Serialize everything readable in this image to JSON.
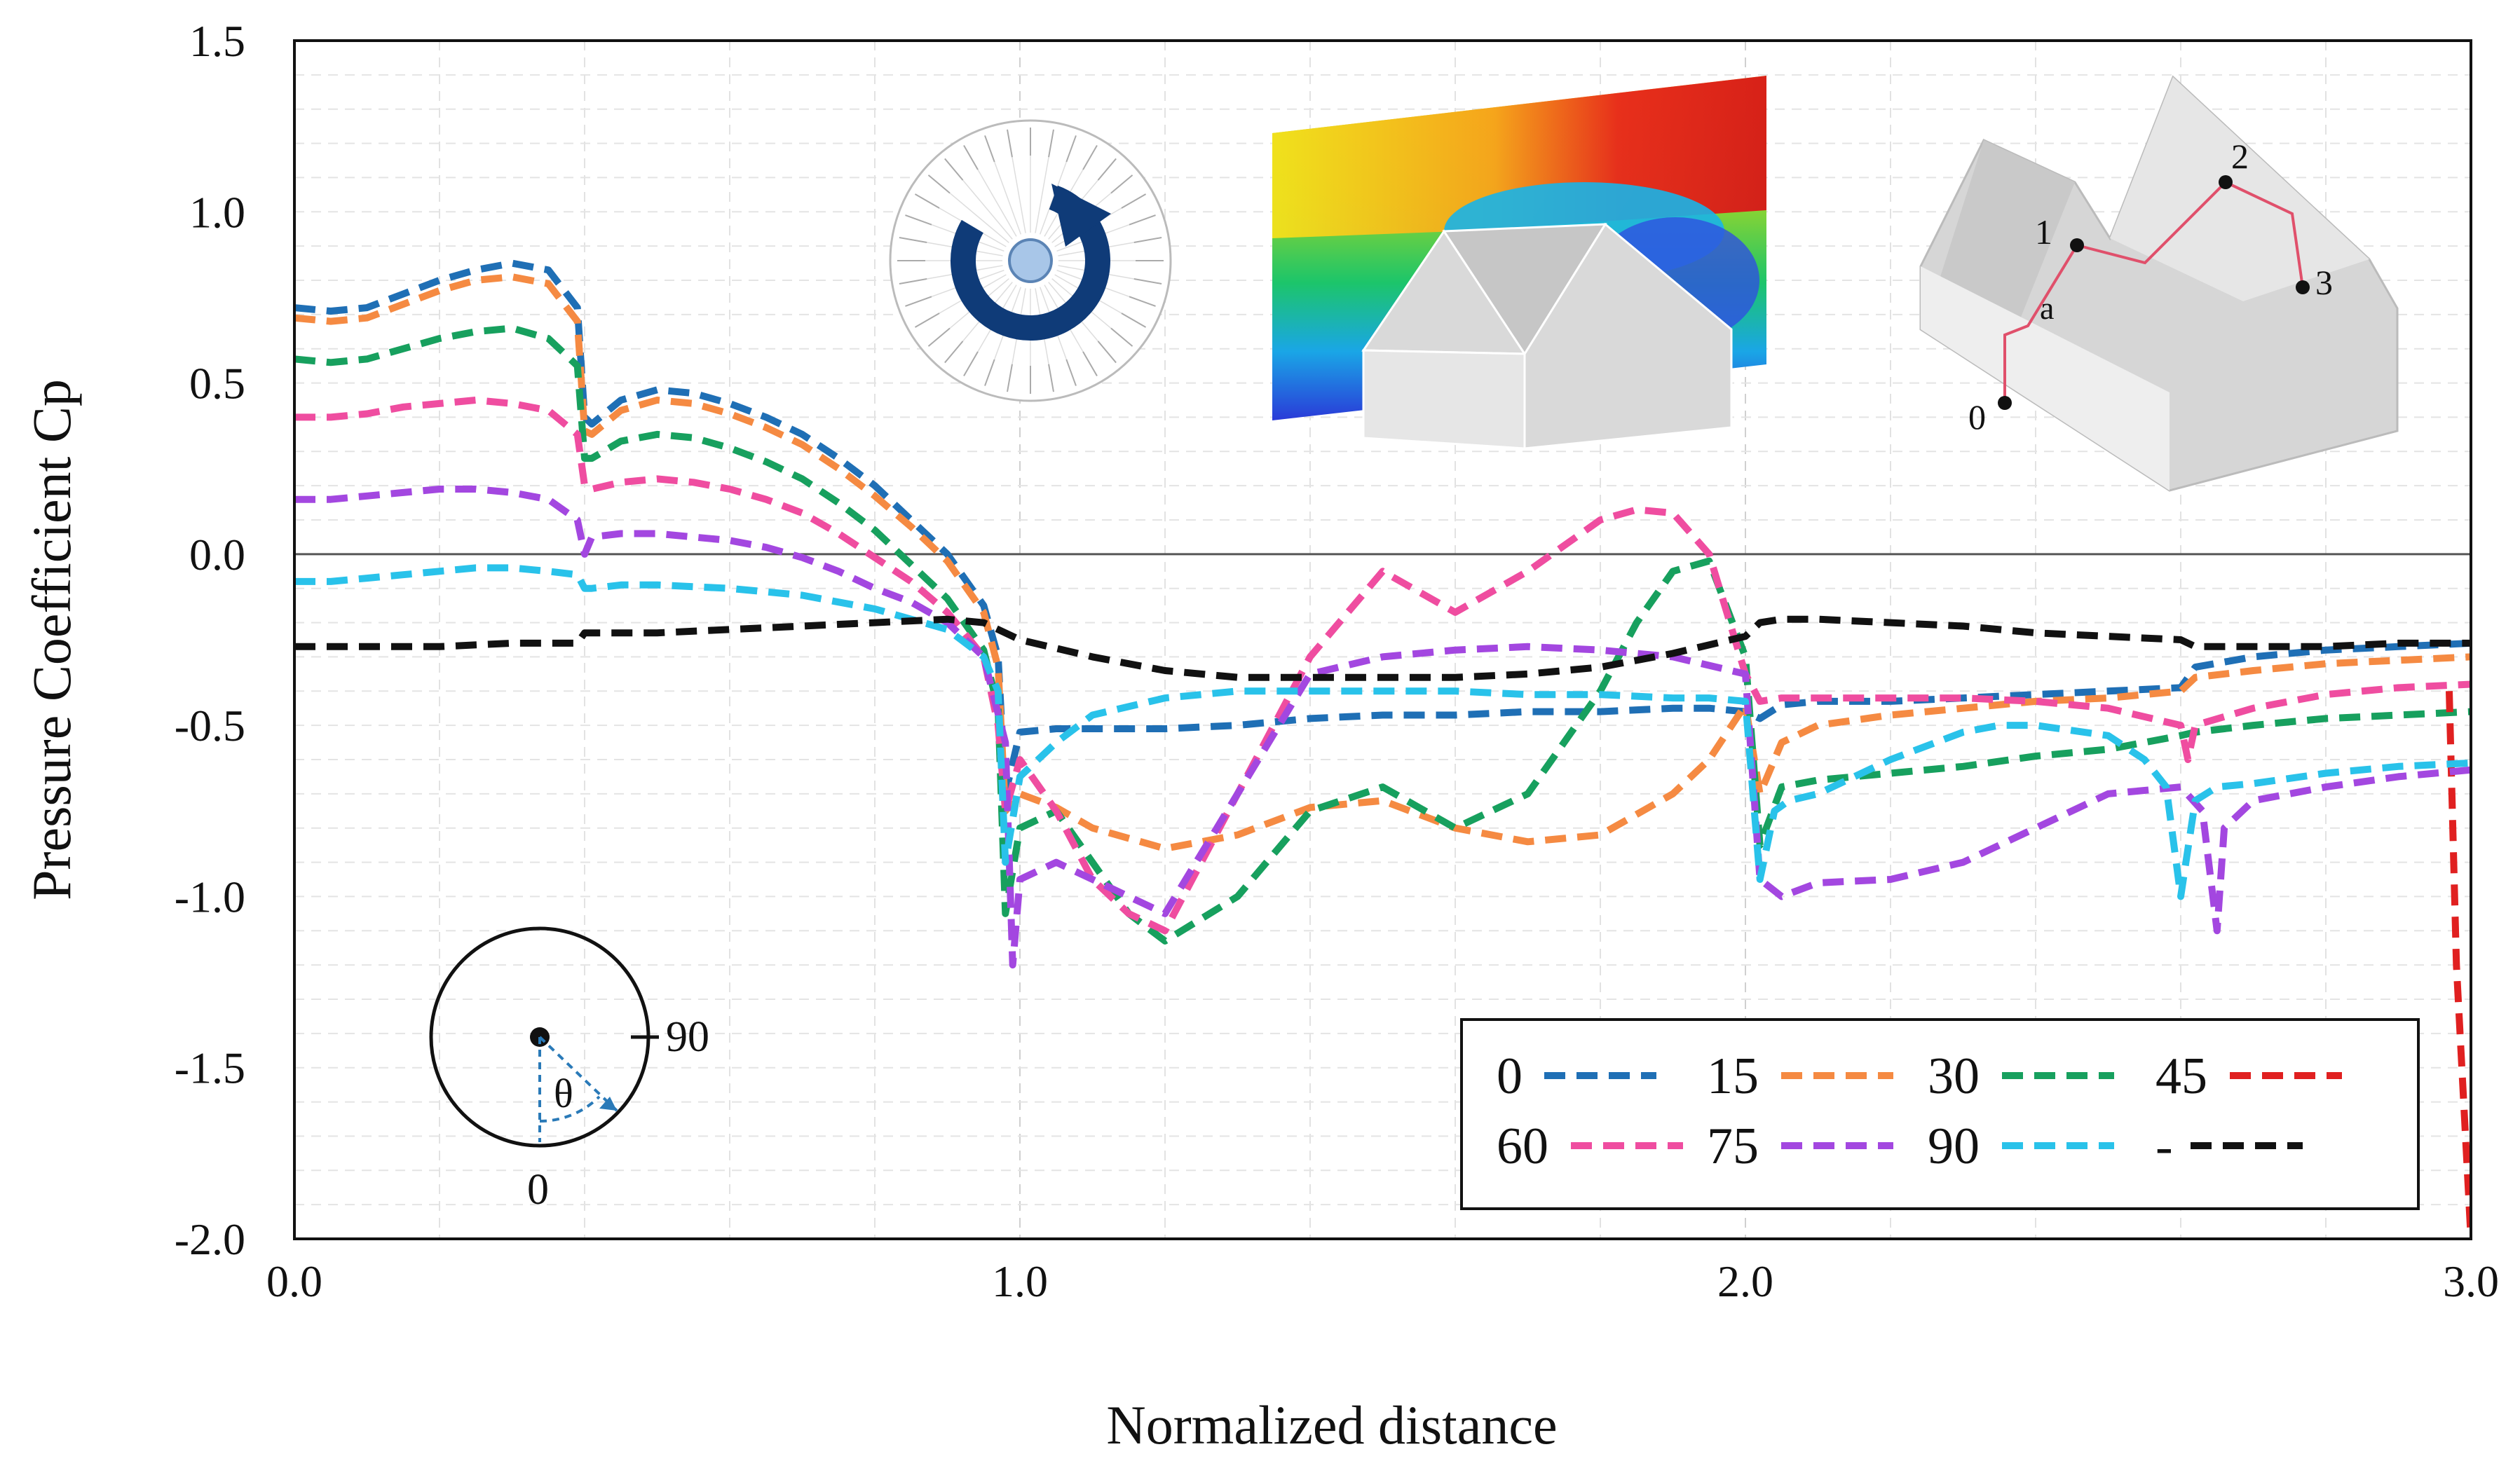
{
  "chart_data": {
    "type": "line",
    "xlabel": "Normalized distance",
    "ylabel": "Pressure Coefficient Cp",
    "xlim": [
      0.0,
      3.0
    ],
    "ylim": [
      -2.0,
      1.5
    ],
    "x_ticks": [
      "0.0",
      "1.0",
      "2.0",
      "3.0"
    ],
    "x_tick_values": [
      0,
      1,
      2,
      3
    ],
    "y_ticks": [
      "1.5",
      "1.0",
      "0.5",
      "0.0",
      "-0.5",
      "-1.0",
      "-1.5",
      "-2.0"
    ],
    "y_tick_values": [
      1.5,
      1.0,
      0.5,
      0.0,
      -0.5,
      -1.0,
      -1.5,
      -2.0
    ],
    "grid": true,
    "legend_position": "bottom-right",
    "series": [
      {
        "name": "0",
        "color": "#1f6fb5",
        "x": [
          0.0,
          0.05,
          0.1,
          0.15,
          0.2,
          0.25,
          0.3,
          0.35,
          0.39,
          0.4,
          0.41,
          0.45,
          0.5,
          0.55,
          0.6,
          0.65,
          0.7,
          0.75,
          0.8,
          0.85,
          0.9,
          0.95,
          0.97,
          0.98,
          1.0,
          1.05,
          1.1,
          1.2,
          1.3,
          1.4,
          1.5,
          1.6,
          1.7,
          1.8,
          1.9,
          1.95,
          2.0,
          2.02,
          2.05,
          2.1,
          2.2,
          2.3,
          2.4,
          2.5,
          2.6,
          2.62,
          2.7,
          2.8,
          2.9,
          3.0
        ],
        "y": [
          0.72,
          0.71,
          0.72,
          0.76,
          0.8,
          0.83,
          0.85,
          0.83,
          0.72,
          0.4,
          0.38,
          0.45,
          0.48,
          0.47,
          0.44,
          0.4,
          0.35,
          0.28,
          0.2,
          0.1,
          0.0,
          -0.15,
          -0.3,
          -0.7,
          -0.52,
          -0.51,
          -0.51,
          -0.51,
          -0.5,
          -0.48,
          -0.47,
          -0.47,
          -0.46,
          -0.46,
          -0.45,
          -0.45,
          -0.46,
          -0.48,
          -0.44,
          -0.43,
          -0.43,
          -0.42,
          -0.41,
          -0.4,
          -0.39,
          -0.33,
          -0.3,
          -0.28,
          -0.27,
          -0.26
        ]
      },
      {
        "name": "15",
        "color": "#f58a42",
        "x": [
          0.0,
          0.05,
          0.1,
          0.15,
          0.2,
          0.25,
          0.3,
          0.35,
          0.39,
          0.4,
          0.41,
          0.45,
          0.5,
          0.55,
          0.6,
          0.65,
          0.7,
          0.75,
          0.8,
          0.85,
          0.9,
          0.95,
          0.97,
          0.98,
          1.0,
          1.05,
          1.1,
          1.2,
          1.3,
          1.4,
          1.5,
          1.6,
          1.7,
          1.8,
          1.9,
          1.95,
          2.0,
          2.02,
          2.05,
          2.1,
          2.2,
          2.3,
          2.4,
          2.5,
          2.6,
          2.62,
          2.7,
          2.8,
          2.9,
          3.0
        ],
        "y": [
          0.69,
          0.68,
          0.69,
          0.73,
          0.77,
          0.8,
          0.81,
          0.79,
          0.68,
          0.36,
          0.35,
          0.42,
          0.45,
          0.44,
          0.41,
          0.37,
          0.32,
          0.25,
          0.17,
          0.08,
          -0.02,
          -0.17,
          -0.33,
          -0.75,
          -0.7,
          -0.74,
          -0.8,
          -0.86,
          -0.82,
          -0.74,
          -0.72,
          -0.8,
          -0.84,
          -0.82,
          -0.7,
          -0.6,
          -0.44,
          -0.7,
          -0.55,
          -0.5,
          -0.47,
          -0.45,
          -0.43,
          -0.42,
          -0.4,
          -0.36,
          -0.34,
          -0.32,
          -0.31,
          -0.3
        ]
      },
      {
        "name": "30",
        "color": "#17a05e",
        "x": [
          0.0,
          0.05,
          0.1,
          0.15,
          0.2,
          0.25,
          0.3,
          0.35,
          0.39,
          0.4,
          0.41,
          0.45,
          0.5,
          0.55,
          0.6,
          0.65,
          0.7,
          0.75,
          0.8,
          0.85,
          0.9,
          0.95,
          0.97,
          0.98,
          1.0,
          1.05,
          1.1,
          1.15,
          1.2,
          1.3,
          1.4,
          1.5,
          1.6,
          1.7,
          1.8,
          1.85,
          1.9,
          1.95,
          2.0,
          2.02,
          2.05,
          2.1,
          2.2,
          2.3,
          2.4,
          2.5,
          2.6,
          2.62,
          2.7,
          2.8,
          2.9,
          3.0
        ],
        "y": [
          0.57,
          0.56,
          0.57,
          0.6,
          0.63,
          0.65,
          0.66,
          0.63,
          0.55,
          0.28,
          0.28,
          0.33,
          0.35,
          0.34,
          0.31,
          0.27,
          0.22,
          0.15,
          0.07,
          -0.03,
          -0.13,
          -0.28,
          -0.45,
          -1.05,
          -0.8,
          -0.75,
          -0.9,
          -1.05,
          -1.13,
          -1.0,
          -0.75,
          -0.68,
          -0.8,
          -0.7,
          -0.4,
          -0.2,
          -0.05,
          -0.02,
          -0.3,
          -0.85,
          -0.68,
          -0.66,
          -0.64,
          -0.62,
          -0.59,
          -0.57,
          -0.53,
          -0.52,
          -0.5,
          -0.48,
          -0.47,
          -0.46
        ]
      },
      {
        "name": "45",
        "color": "#e02020",
        "x": [
          2.97,
          2.98,
          3.0
        ],
        "y": [
          -0.4,
          -1.2,
          -2.0
        ]
      },
      {
        "name": "60",
        "color": "#ef4da0",
        "x": [
          0.0,
          0.05,
          0.1,
          0.15,
          0.2,
          0.25,
          0.3,
          0.35,
          0.39,
          0.4,
          0.41,
          0.45,
          0.5,
          0.55,
          0.6,
          0.65,
          0.7,
          0.75,
          0.8,
          0.85,
          0.9,
          0.95,
          0.97,
          0.98,
          1.0,
          1.05,
          1.1,
          1.15,
          1.2,
          1.3,
          1.4,
          1.5,
          1.6,
          1.7,
          1.8,
          1.85,
          1.9,
          1.95,
          2.0,
          2.02,
          2.05,
          2.1,
          2.2,
          2.3,
          2.4,
          2.5,
          2.6,
          2.61,
          2.62,
          2.7,
          2.8,
          2.9,
          3.0
        ],
        "y": [
          0.4,
          0.4,
          0.41,
          0.43,
          0.44,
          0.45,
          0.44,
          0.42,
          0.35,
          0.2,
          0.19,
          0.21,
          0.22,
          0.21,
          0.19,
          0.16,
          0.12,
          0.06,
          -0.01,
          -0.08,
          -0.17,
          -0.3,
          -0.5,
          -0.75,
          -0.6,
          -0.75,
          -0.95,
          -1.05,
          -1.1,
          -0.7,
          -0.3,
          -0.05,
          -0.17,
          -0.05,
          0.1,
          0.13,
          0.12,
          0.0,
          -0.35,
          -0.43,
          -0.42,
          -0.42,
          -0.42,
          -0.42,
          -0.43,
          -0.45,
          -0.5,
          -0.6,
          -0.5,
          -0.45,
          -0.41,
          -0.39,
          -0.38
        ]
      },
      {
        "name": "75",
        "color": "#a347e0",
        "x": [
          0.0,
          0.05,
          0.1,
          0.15,
          0.2,
          0.25,
          0.3,
          0.35,
          0.39,
          0.4,
          0.41,
          0.45,
          0.5,
          0.55,
          0.6,
          0.65,
          0.7,
          0.75,
          0.8,
          0.85,
          0.9,
          0.95,
          0.98,
          0.99,
          1.0,
          1.05,
          1.1,
          1.2,
          1.3,
          1.4,
          1.5,
          1.6,
          1.7,
          1.8,
          1.9,
          2.0,
          2.02,
          2.05,
          2.1,
          2.2,
          2.3,
          2.4,
          2.5,
          2.6,
          2.63,
          2.65,
          2.66,
          2.7,
          2.8,
          2.9,
          3.0
        ],
        "y": [
          0.16,
          0.16,
          0.17,
          0.18,
          0.19,
          0.19,
          0.18,
          0.16,
          0.1,
          0.0,
          0.05,
          0.06,
          0.06,
          0.05,
          0.04,
          0.02,
          -0.01,
          -0.05,
          -0.1,
          -0.14,
          -0.2,
          -0.3,
          -0.55,
          -1.2,
          -0.95,
          -0.9,
          -0.95,
          -1.05,
          -0.7,
          -0.35,
          -0.3,
          -0.28,
          -0.27,
          -0.28,
          -0.3,
          -0.35,
          -0.95,
          -1.0,
          -0.96,
          -0.95,
          -0.9,
          -0.8,
          -0.7,
          -0.68,
          -0.75,
          -1.1,
          -0.8,
          -0.72,
          -0.68,
          -0.65,
          -0.63
        ]
      },
      {
        "name": "90",
        "color": "#29c2ea",
        "x": [
          0.0,
          0.05,
          0.1,
          0.15,
          0.2,
          0.25,
          0.3,
          0.35,
          0.39,
          0.4,
          0.41,
          0.45,
          0.5,
          0.6,
          0.7,
          0.8,
          0.9,
          0.95,
          0.97,
          0.98,
          1.0,
          1.05,
          1.1,
          1.2,
          1.3,
          1.4,
          1.5,
          1.6,
          1.7,
          1.8,
          1.9,
          1.95,
          2.0,
          2.02,
          2.04,
          2.06,
          2.1,
          2.2,
          2.3,
          2.35,
          2.4,
          2.5,
          2.55,
          2.58,
          2.6,
          2.62,
          2.65,
          2.7,
          2.8,
          2.9,
          3.0
        ],
        "y": [
          -0.08,
          -0.08,
          -0.07,
          -0.06,
          -0.05,
          -0.04,
          -0.04,
          -0.05,
          -0.06,
          -0.1,
          -0.1,
          -0.09,
          -0.09,
          -0.1,
          -0.12,
          -0.16,
          -0.22,
          -0.3,
          -0.4,
          -0.9,
          -0.65,
          -0.55,
          -0.47,
          -0.42,
          -0.4,
          -0.4,
          -0.4,
          -0.4,
          -0.41,
          -0.41,
          -0.42,
          -0.42,
          -0.43,
          -0.95,
          -0.75,
          -0.72,
          -0.7,
          -0.6,
          -0.52,
          -0.5,
          -0.5,
          -0.53,
          -0.6,
          -0.68,
          -1.0,
          -0.72,
          -0.68,
          -0.67,
          -0.64,
          -0.62,
          -0.61
        ]
      },
      {
        "name": "-",
        "color": "#111111",
        "x": [
          0.0,
          0.1,
          0.2,
          0.3,
          0.39,
          0.4,
          0.5,
          0.6,
          0.7,
          0.8,
          0.9,
          0.95,
          1.0,
          1.1,
          1.2,
          1.3,
          1.4,
          1.5,
          1.6,
          1.7,
          1.8,
          1.9,
          2.0,
          2.02,
          2.05,
          2.1,
          2.2,
          2.3,
          2.4,
          2.5,
          2.6,
          2.62,
          2.7,
          2.8,
          2.9,
          3.0
        ],
        "y": [
          -0.27,
          -0.27,
          -0.27,
          -0.26,
          -0.26,
          -0.23,
          -0.23,
          -0.22,
          -0.21,
          -0.2,
          -0.19,
          -0.2,
          -0.25,
          -0.3,
          -0.34,
          -0.36,
          -0.36,
          -0.36,
          -0.36,
          -0.35,
          -0.33,
          -0.29,
          -0.24,
          -0.2,
          -0.19,
          -0.19,
          -0.2,
          -0.21,
          -0.23,
          -0.24,
          -0.25,
          -0.27,
          -0.27,
          -0.27,
          -0.26,
          -0.26
        ]
      }
    ]
  },
  "insets": {
    "angle_diagram": {
      "label_90": "90",
      "label_0": "0",
      "label_theta": "θ"
    },
    "path_diagram": {
      "p0": "0",
      "p1": "1",
      "p2": "2",
      "p3": "3",
      "pa": "a"
    }
  }
}
